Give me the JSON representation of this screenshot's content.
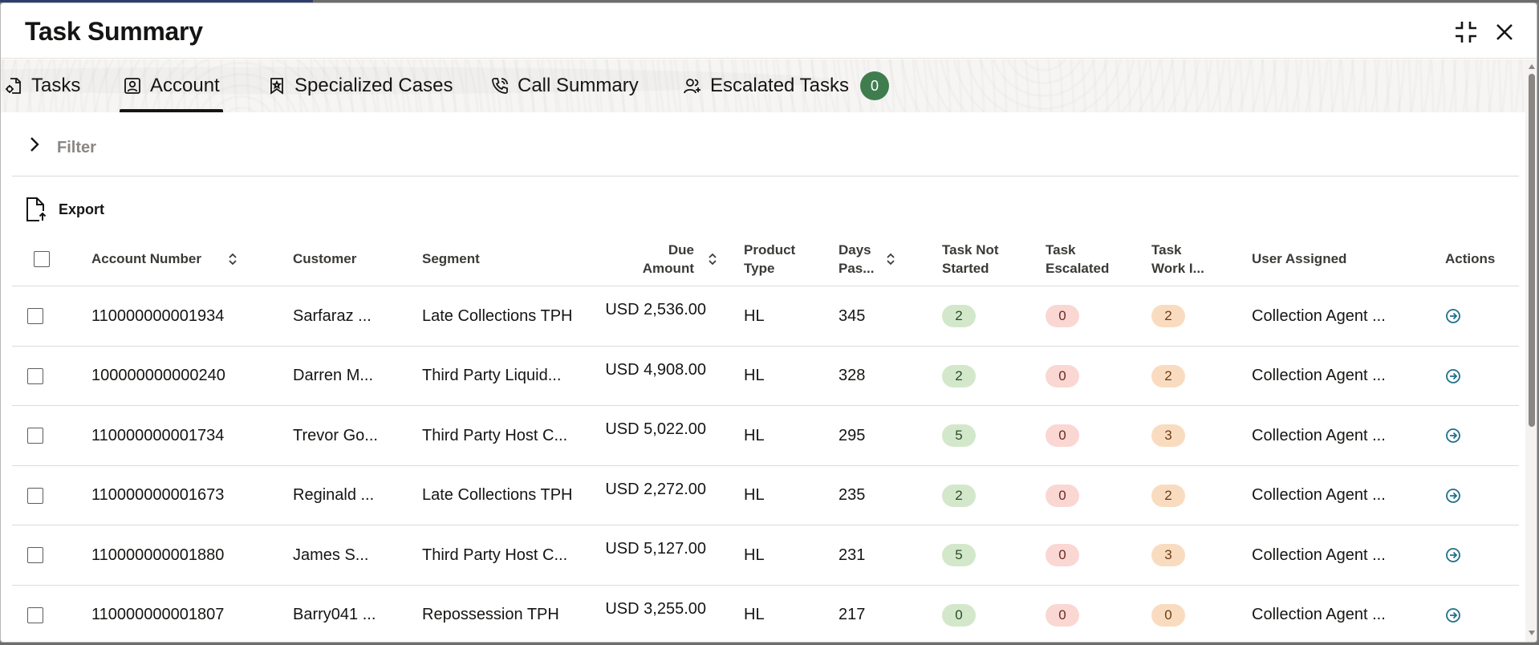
{
  "dialog": {
    "title": "Task Summary",
    "compress_icon": "compress-icon",
    "close_icon": "close-icon"
  },
  "tabs": [
    {
      "label": "Tasks",
      "icon": "task-gear-icon",
      "active": false
    },
    {
      "label": "Account",
      "icon": "account-icon",
      "active": true
    },
    {
      "label": "Specialized Cases",
      "icon": "bookmark-icon",
      "active": false
    },
    {
      "label": "Call Summary",
      "icon": "phone-icon",
      "active": false
    },
    {
      "label": "Escalated Tasks",
      "icon": "users-icon",
      "active": false,
      "badge": "0"
    }
  ],
  "filter": {
    "label": "Filter"
  },
  "toolbar": {
    "export_label": "Export"
  },
  "table": {
    "columns": {
      "account_number": "Account Number",
      "customer": "Customer",
      "segment": "Segment",
      "due_amount_1": "Due",
      "due_amount_2": "Amount",
      "product_type_1": "Product",
      "product_type_2": "Type",
      "days_past_1": "Days",
      "days_past_2": "Pas...",
      "task_not_started_1": "Task Not",
      "task_not_started_2": "Started",
      "task_escalated_1": "Task",
      "task_escalated_2": "Escalated",
      "task_work_1": "Task",
      "task_work_2": "Work I...",
      "user_assigned": "User Assigned",
      "actions": "Actions"
    },
    "rows": [
      {
        "account": "110000000001934",
        "customer": "Sarfaraz ...",
        "segment": "Late Collections TPH",
        "due": "USD 2,536.00",
        "product": "HL",
        "days": "345",
        "not_started": "2",
        "escalated": "0",
        "work": "2",
        "user": "Collection Agent ..."
      },
      {
        "account": "100000000000240",
        "customer": "Darren M...",
        "segment": "Third Party Liquid...",
        "due": "USD 4,908.00",
        "product": "HL",
        "days": "328",
        "not_started": "2",
        "escalated": "0",
        "work": "2",
        "user": "Collection Agent ..."
      },
      {
        "account": "110000000001734",
        "customer": "Trevor Go...",
        "segment": "Third Party Host C...",
        "due": "USD 5,022.00",
        "product": "HL",
        "days": "295",
        "not_started": "5",
        "escalated": "0",
        "work": "3",
        "user": "Collection Agent ..."
      },
      {
        "account": "110000000001673",
        "customer": "Reginald ...",
        "segment": "Late Collections TPH",
        "due": "USD 2,272.00",
        "product": "HL",
        "days": "235",
        "not_started": "2",
        "escalated": "0",
        "work": "2",
        "user": "Collection Agent ..."
      },
      {
        "account": "110000000001880",
        "customer": "James S...",
        "segment": "Third Party Host C...",
        "due": "USD 5,127.00",
        "product": "HL",
        "days": "231",
        "not_started": "5",
        "escalated": "0",
        "work": "3",
        "user": "Collection Agent ..."
      },
      {
        "account": "110000000001807",
        "customer": "Barry041 ...",
        "segment": "Repossession TPH",
        "due": "USD 3,255.00",
        "product": "HL",
        "days": "217",
        "not_started": "0",
        "escalated": "0",
        "work": "0",
        "user": "Collection Agent ..."
      }
    ]
  },
  "colors": {
    "badge_green": "#3f7d4f",
    "pill_green": "#d3e8cb",
    "pill_red": "#fad7d3",
    "pill_orange": "#f9dcc0",
    "action_blue": "#1f6f8b"
  }
}
